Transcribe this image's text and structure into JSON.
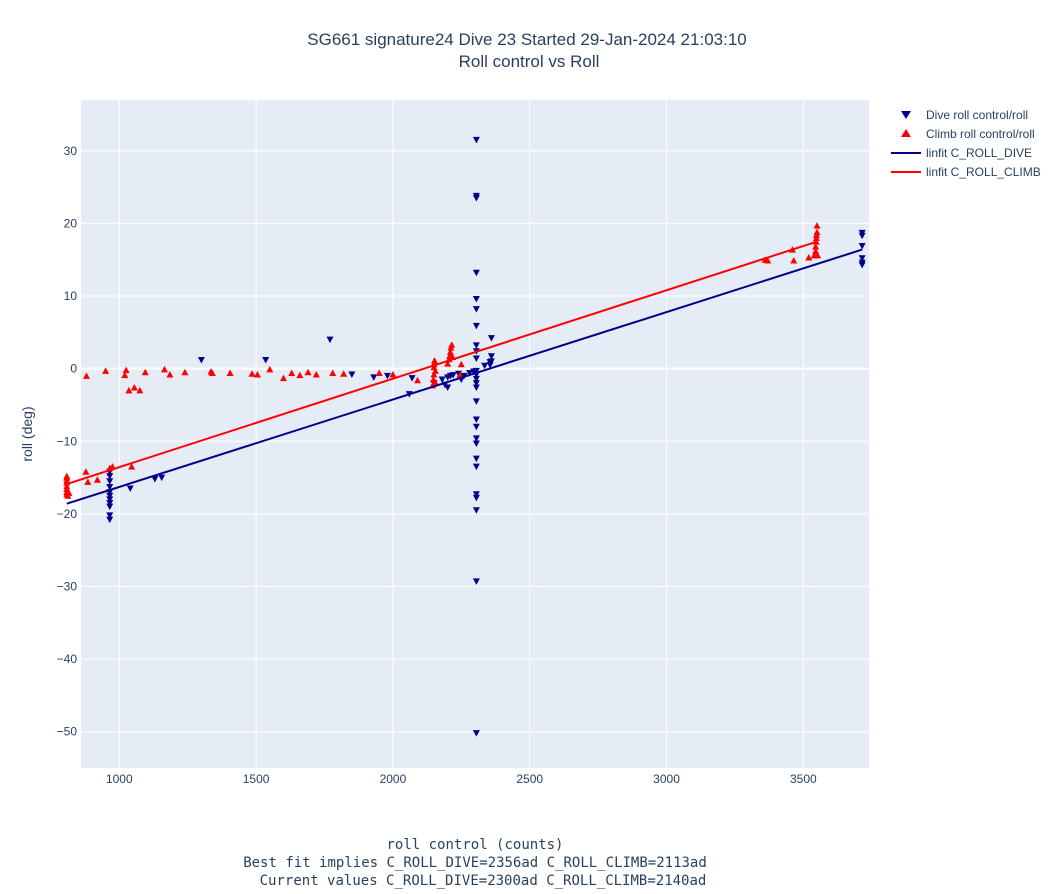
{
  "chart_data": {
    "type": "scatter",
    "title_line1": "SG661 signature24 Dive 23 Started 29-Jan-2024 21:03:10",
    "title_line2": "Roll control vs Roll",
    "ylabel": "roll (deg)",
    "xlabel_lines": [
      "roll control (counts)",
      "Best fit implies C_ROLL_DIVE=2356ad C_ROLL_CLIMB=2113ad",
      "Current values C_ROLL_DIVE=2300ad C_ROLL_CLIMB=2140ad"
    ],
    "xlim": [
      860,
      3740
    ],
    "ylim": [
      -55,
      37
    ],
    "xticks": [
      1000,
      1500,
      2000,
      2500,
      3000,
      3500
    ],
    "xtick_labels": [
      "1000",
      "1500",
      "2000",
      "2500",
      "3000",
      "3500"
    ],
    "yticks": [
      30,
      20,
      10,
      0,
      -10,
      -20,
      -30,
      -40,
      -50
    ],
    "ytick_labels": [
      "30",
      "20",
      "10",
      "0",
      "−10",
      "−20",
      "−30",
      "−40",
      "−50"
    ],
    "grid": true,
    "legend_position": "top-right outside",
    "colors": {
      "plot_bg": "#e5ecf6",
      "grid": "#ffffff",
      "dive": "#00008b",
      "climb": "#ff0000",
      "text": "#2a3f5f"
    },
    "series": [
      {
        "name": "Dive roll control/roll",
        "kind": "scatter",
        "marker": "triangle-down",
        "color": "#00008b",
        "points": [
          [
            965,
            -14.2
          ],
          [
            965,
            -14.8
          ],
          [
            965,
            -15.5
          ],
          [
            965,
            -16.3
          ],
          [
            965,
            -17
          ],
          [
            965,
            -17.5
          ],
          [
            965,
            -18
          ],
          [
            965,
            -18.5
          ],
          [
            965,
            -19
          ],
          [
            965,
            -20.2
          ],
          [
            965,
            -20.8
          ],
          [
            1040,
            -16.5
          ],
          [
            1130,
            -15.2
          ],
          [
            1155,
            -15.0
          ],
          [
            1300,
            1.2
          ],
          [
            1535,
            1.2
          ],
          [
            1770,
            4.0
          ],
          [
            1850,
            -0.8
          ],
          [
            1930,
            -1.2
          ],
          [
            1980,
            -1.0
          ],
          [
            2060,
            -3.5
          ],
          [
            2070,
            -1.3
          ],
          [
            2150,
            -2.0
          ],
          [
            2180,
            -1.5
          ],
          [
            2190,
            -2.2
          ],
          [
            2200,
            -2.6
          ],
          [
            2200,
            -1.2
          ],
          [
            2210,
            -1.0
          ],
          [
            2220,
            -0.9
          ],
          [
            2240,
            -0.7
          ],
          [
            2250,
            -1.5
          ],
          [
            2260,
            -1.0
          ],
          [
            2280,
            -0.6
          ],
          [
            2295,
            -0.4
          ],
          [
            2305,
            31.5
          ],
          [
            2305,
            23.5
          ],
          [
            2305,
            23.8
          ],
          [
            2305,
            13.2
          ],
          [
            2305,
            9.6
          ],
          [
            2305,
            8.2
          ],
          [
            2305,
            5.9
          ],
          [
            2305,
            3.2
          ],
          [
            2305,
            2.4
          ],
          [
            2305,
            1.4
          ],
          [
            2305,
            -0.3
          ],
          [
            2305,
            -0.8
          ],
          [
            2305,
            -1.4
          ],
          [
            2305,
            -2.0
          ],
          [
            2305,
            -2.6
          ],
          [
            2305,
            -4.5
          ],
          [
            2305,
            -7.0
          ],
          [
            2305,
            -8.0
          ],
          [
            2305,
            -9.6
          ],
          [
            2305,
            -10.3
          ],
          [
            2305,
            -12.4
          ],
          [
            2305,
            -13.5
          ],
          [
            2305,
            -17.3
          ],
          [
            2305,
            -17.8
          ],
          [
            2305,
            -19.5
          ],
          [
            2305,
            -29.3
          ],
          [
            2305,
            -50.2
          ],
          [
            2335,
            0.4
          ],
          [
            2355,
            0.9
          ],
          [
            2355,
            0.5
          ],
          [
            2360,
            4.2
          ],
          [
            2360,
            1.7
          ],
          [
            2360,
            1.0
          ],
          [
            3715,
            18.7
          ],
          [
            3715,
            18.3
          ],
          [
            3715,
            16.9
          ],
          [
            3715,
            15.2
          ],
          [
            3715,
            14.6
          ],
          [
            3715,
            14.3
          ]
        ]
      },
      {
        "name": "Climb roll control/roll",
        "kind": "scatter",
        "marker": "triangle-up",
        "color": "#ff0000",
        "points": [
          [
            808,
            -14.8
          ],
          [
            808,
            -15.0
          ],
          [
            808,
            -15.4
          ],
          [
            808,
            -15.7
          ],
          [
            808,
            -16.2
          ],
          [
            808,
            -16.6
          ],
          [
            808,
            -17.0
          ],
          [
            808,
            -17.3
          ],
          [
            812,
            -17.5
          ],
          [
            816,
            -17.1
          ],
          [
            878,
            -14.2
          ],
          [
            880,
            -1.0
          ],
          [
            885,
            -15.6
          ],
          [
            920,
            -15.3
          ],
          [
            950,
            -0.3
          ],
          [
            965,
            -13.7
          ],
          [
            975,
            -13.5
          ],
          [
            1020,
            -0.9
          ],
          [
            1025,
            -0.2
          ],
          [
            1035,
            -3.0
          ],
          [
            1045,
            -13.5
          ],
          [
            1055,
            -2.6
          ],
          [
            1075,
            -3.0
          ],
          [
            1095,
            -0.5
          ],
          [
            1165,
            -0.1
          ],
          [
            1185,
            -0.8
          ],
          [
            1240,
            -0.5
          ],
          [
            1335,
            -0.4
          ],
          [
            1340,
            -0.6
          ],
          [
            1405,
            -0.6
          ],
          [
            1485,
            -0.7
          ],
          [
            1505,
            -0.8
          ],
          [
            1550,
            -0.1
          ],
          [
            1600,
            -1.3
          ],
          [
            1630,
            -0.6
          ],
          [
            1660,
            -0.9
          ],
          [
            1690,
            -0.5
          ],
          [
            1720,
            -0.8
          ],
          [
            1780,
            -0.6
          ],
          [
            1820,
            -0.7
          ],
          [
            1950,
            -0.6
          ],
          [
            2000,
            -0.8
          ],
          [
            2090,
            -1.6
          ],
          [
            2145,
            -2.3
          ],
          [
            2148,
            -1.5
          ],
          [
            2150,
            -0.8
          ],
          [
            2150,
            0.2
          ],
          [
            2150,
            0.6
          ],
          [
            2152,
            1.1
          ],
          [
            2155,
            -1.9
          ],
          [
            2155,
            -0.3
          ],
          [
            2200,
            0.7
          ],
          [
            2205,
            1.3
          ],
          [
            2208,
            1.8
          ],
          [
            2210,
            2.3
          ],
          [
            2212,
            2.9
          ],
          [
            2215,
            3.3
          ],
          [
            2218,
            1.6
          ],
          [
            2245,
            -0.8
          ],
          [
            2250,
            0.6
          ],
          [
            3360,
            15.0
          ],
          [
            3370,
            14.9
          ],
          [
            3460,
            16.4
          ],
          [
            3465,
            14.9
          ],
          [
            3520,
            15.3
          ],
          [
            3540,
            15.6
          ],
          [
            3545,
            16.2
          ],
          [
            3545,
            16.8
          ],
          [
            3547,
            17.5
          ],
          [
            3548,
            18.0
          ],
          [
            3548,
            18.4
          ],
          [
            3550,
            18.8
          ],
          [
            3550,
            19.7
          ],
          [
            3552,
            15.6
          ]
        ]
      },
      {
        "name": "linfit C_ROLL_DIVE",
        "kind": "line",
        "color": "#00008b",
        "points": [
          [
            808,
            -18.6
          ],
          [
            3715,
            16.4
          ]
        ]
      },
      {
        "name": "linfit C_ROLL_CLIMB",
        "kind": "line",
        "color": "#ff0000",
        "points": [
          [
            808,
            -15.9
          ],
          [
            3550,
            17.5
          ]
        ]
      }
    ]
  }
}
